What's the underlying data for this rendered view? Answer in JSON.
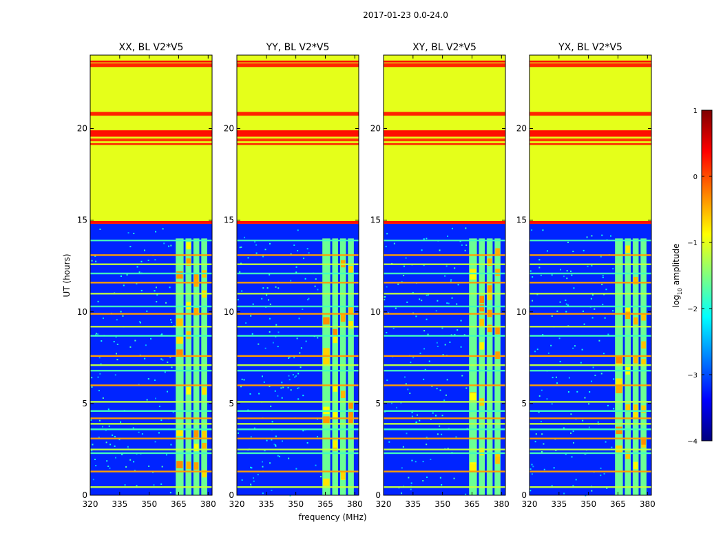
{
  "chart_data": {
    "type": "heatmap",
    "suptitle": "2017-01-23 0.0-24.0",
    "xlabel": "frequency (MHz)",
    "ylabel": "UT (hours)",
    "xlim": [
      320,
      382
    ],
    "ylim": [
      0,
      24
    ],
    "xticks": [
      320,
      335,
      350,
      365,
      380
    ],
    "yticks": [
      0,
      5,
      10,
      15,
      20
    ],
    "panels": [
      {
        "title": "XX, BL V2*V5"
      },
      {
        "title": "YY, BL V2*V5"
      },
      {
        "title": "XY, BL V2*V5"
      },
      {
        "title": "YX, BL V2*V5"
      }
    ],
    "colorbar": {
      "label": "log",
      "label_sub": "10",
      "label_rest": " amplitude",
      "range": [
        -4,
        1
      ],
      "ticks": [
        "1",
        "0",
        "−1",
        "−2",
        "−3",
        "−4"
      ],
      "tick_values": [
        1,
        0,
        -1,
        -2,
        -3,
        -4
      ]
    },
    "flagged_rows": [
      {
        "t0": 14.8,
        "t1": 24.0,
        "level": -1.0
      },
      {
        "t0": 23.35,
        "t1": 23.55,
        "level": 0.2
      },
      {
        "t0": 23.6,
        "t1": 23.7,
        "level": 0.4
      },
      {
        "t0": 20.7,
        "t1": 20.9,
        "level": 0.2
      },
      {
        "t0": 19.55,
        "t1": 19.9,
        "level": 0.3
      },
      {
        "t0": 19.3,
        "t1": 19.45,
        "level": 0.1
      },
      {
        "t0": 19.1,
        "t1": 19.2,
        "level": 0.2
      },
      {
        "t0": 14.8,
        "t1": 14.95,
        "level": 0.3
      }
    ],
    "lower_background_level": -3.2,
    "rfi_bands_mhz": [
      [
        363.5,
        367.5
      ],
      [
        368.5,
        371.5
      ],
      [
        372.5,
        375.5
      ],
      [
        376.5,
        379.5
      ]
    ],
    "rfi_level": -1.6,
    "rfi_peak_level": -0.6,
    "horizontal_lines_hours": [
      0.45,
      1.3,
      2.3,
      2.5,
      3.1,
      3.6,
      3.9,
      4.2,
      4.6,
      5.1,
      6.0,
      6.8,
      7.1,
      7.6,
      8.7,
      9.2,
      9.9,
      10.3,
      11.0,
      11.6,
      12.1,
      12.6,
      13.1,
      13.9
    ]
  }
}
